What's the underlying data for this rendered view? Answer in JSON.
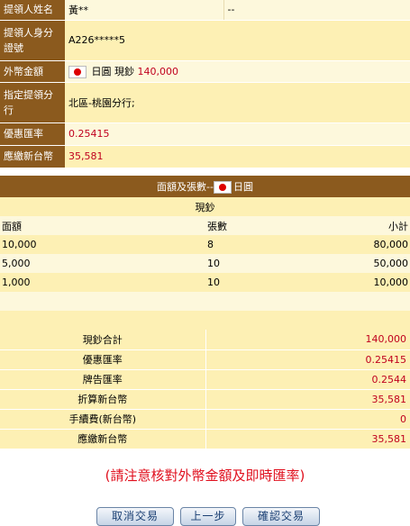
{
  "info": {
    "name_label": "提領人姓名",
    "name_value": "黃**",
    "name_extra": "--",
    "id_label_1": "提領人身分",
    "id_label_2": "證號",
    "id_value": "A226*****5",
    "amount_label": "外幣金額",
    "amount_currency": "日圓",
    "amount_type": "現鈔",
    "amount_value": "140,000",
    "branch_label_1": "指定提領分",
    "branch_label_2": "行",
    "branch_value": "北區-桃園分行;",
    "rate_label": "優惠匯率",
    "rate_value": "0.25415",
    "twd_label": "應繳新台幣",
    "twd_value": "35,581"
  },
  "detail": {
    "header_prefix": "面額及張數--",
    "header_currency": "日圓",
    "subheader": "現鈔",
    "columns": [
      "面額",
      "張數",
      "小計"
    ],
    "rows": [
      [
        "10,000",
        "8",
        "80,000"
      ],
      [
        "5,000",
        "10",
        "50,000"
      ],
      [
        "1,000",
        "10",
        "10,000"
      ]
    ]
  },
  "summary": [
    {
      "label": "現鈔合計",
      "value": "140,000"
    },
    {
      "label": "優惠匯率",
      "value": "0.25415"
    },
    {
      "label": "牌告匯率",
      "value": "0.2544"
    },
    {
      "label": "折算新台幣",
      "value": "35,581"
    },
    {
      "label": "手續費(新台幣)",
      "value": "0"
    },
    {
      "label": "應繳新台幣",
      "value": "35,581"
    }
  ],
  "notice": "(請注意核對外幣金額及即時匯率)",
  "buttons": {
    "cancel": "取消交易",
    "back": "上一步",
    "confirm": "確認交易"
  },
  "icons": {
    "flag": "japan-flag-icon"
  }
}
